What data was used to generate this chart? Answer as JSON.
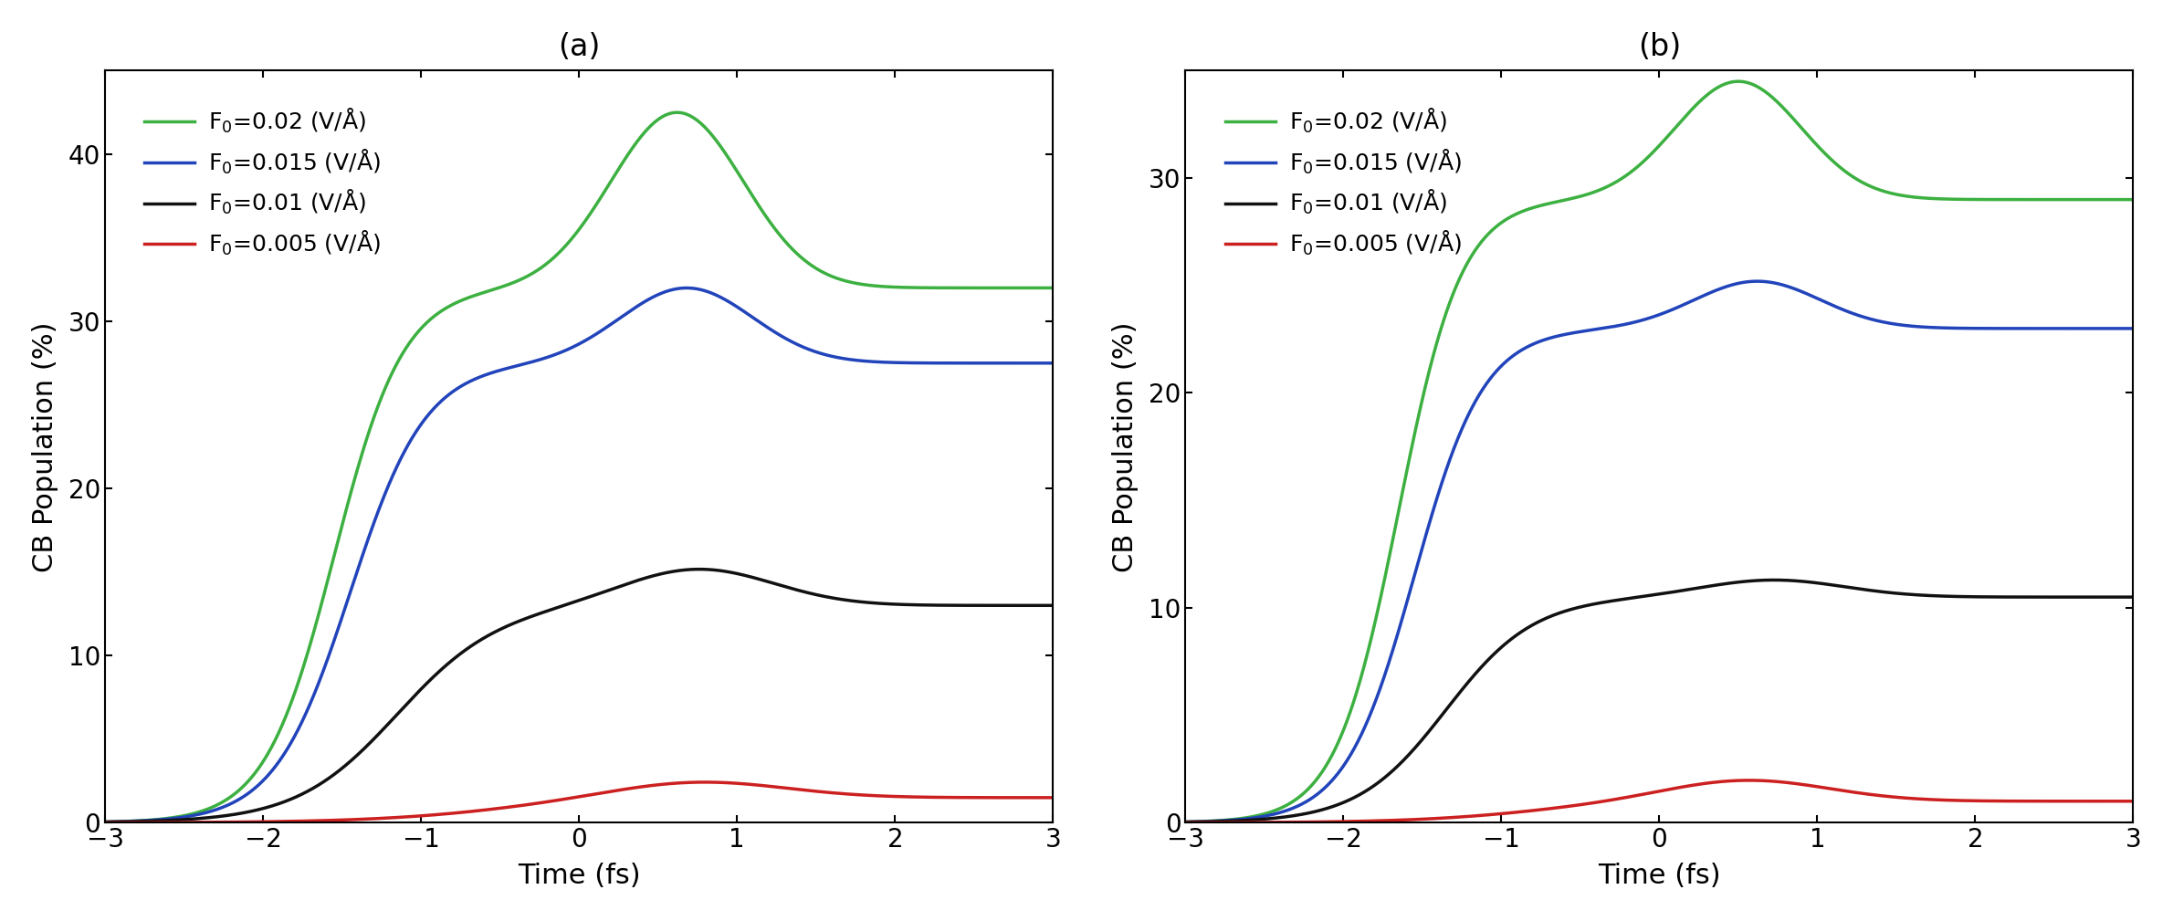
{
  "title_a": "(a)",
  "title_b": "(b)",
  "xlabel": "Time (fs)",
  "ylabel": "CB Population (%)",
  "xlim": [
    -3,
    3
  ],
  "ylim_a": [
    0,
    45
  ],
  "ylim_b": [
    0,
    35
  ],
  "yticks_a": [
    0,
    10,
    20,
    30,
    40
  ],
  "yticks_b": [
    0,
    10,
    20,
    30
  ],
  "xticks": [
    -3,
    -2,
    -1,
    0,
    1,
    2,
    3
  ],
  "colors": {
    "green": "#3cb040",
    "blue": "#2244bb",
    "black": "#111111",
    "red": "#cc2020"
  },
  "legend_labels": [
    "F$_0$=0.02 (V/Å)",
    "F$_0$=0.015 (V/Å)",
    "F$_0$=0.01 (V/Å)",
    "F$_0$=0.005 (V/Å)"
  ],
  "line_width": 2.5,
  "figsize": [
    23.8,
    10.09
  ],
  "dpi": 100
}
